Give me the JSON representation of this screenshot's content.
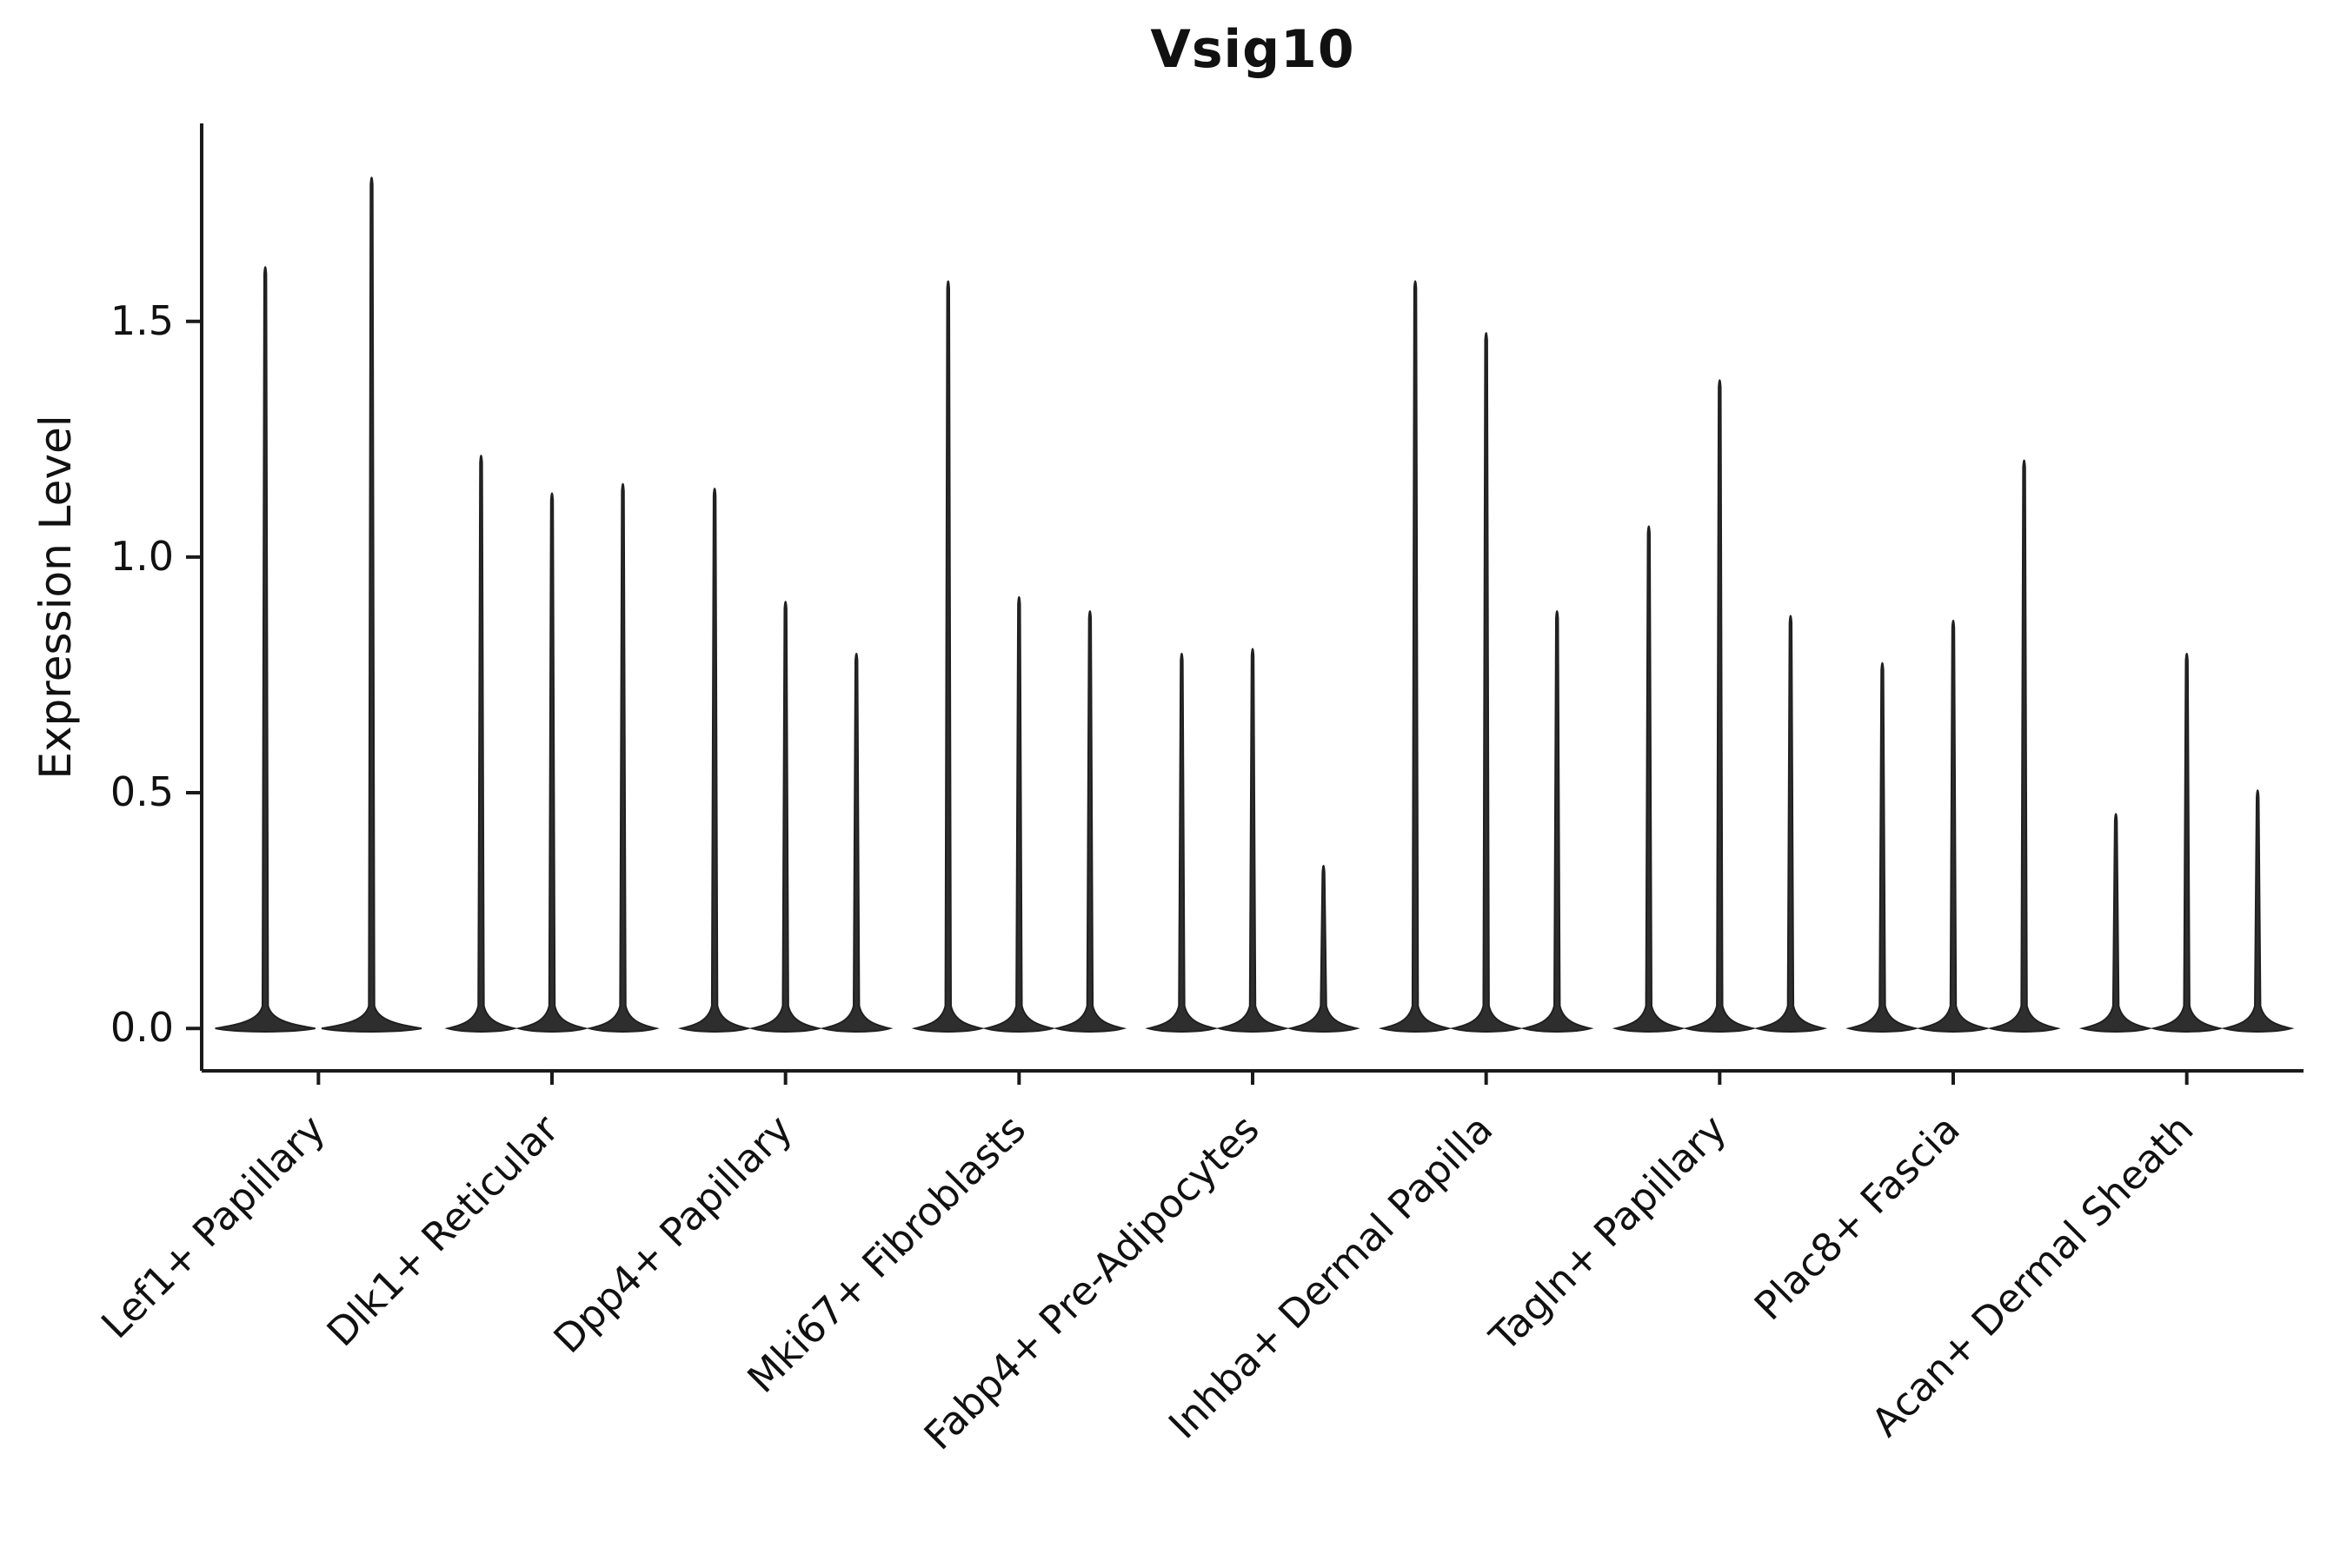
{
  "figure": {
    "kind": "violin-plot-figure"
  },
  "chart_data": {
    "type": "violin",
    "title": "Vsig10",
    "xlabel": "",
    "ylabel": "Expression Level",
    "ylim": [
      -0.09,
      1.92
    ],
    "yticks": [
      "0.0",
      "0.5",
      "1.0",
      "1.5"
    ],
    "grid": false,
    "legend": "none",
    "axis_color": "#1a1a1a",
    "violin_fill": "#2e2e2e",
    "violin_stroke": "#1f1f1f",
    "description": "Narrow violin spikes per cluster; bulk of cells at expression 0 forms a flat base, spike tip marks maximum expression level.",
    "categories": [
      "Lef1+ Papillary",
      "Dlk1+ Reticular",
      "Dpp4+ Papillary",
      "Mki67+ Fibroblasts",
      "Fabp4+ Pre-Adipocytes",
      "Inhba+ Dermal Papilla",
      "Tagln+ Papillary",
      "Plac8+ Fascia",
      "Acan+ Dermal Sheath"
    ],
    "groups": [
      {
        "category": "Lef1+ Papillary",
        "spike_heights": [
          1.63,
          1.82
        ]
      },
      {
        "category": "Dlk1+ Reticular",
        "spike_heights": [
          1.23,
          1.15,
          1.17
        ]
      },
      {
        "category": "Dpp4+ Papillary",
        "spike_heights": [
          1.16,
          0.92,
          0.81
        ]
      },
      {
        "category": "Mki67+ Fibroblasts",
        "spike_heights": [
          1.6,
          0.93,
          0.9
        ]
      },
      {
        "category": "Fabp4+ Pre-Adipocytes",
        "spike_heights": [
          0.81,
          0.82,
          0.36
        ]
      },
      {
        "category": "Inhba+ Dermal Papilla",
        "spike_heights": [
          1.6,
          1.49,
          0.9
        ]
      },
      {
        "category": "Tagln+ Papillary",
        "spike_heights": [
          1.08,
          1.39,
          0.89
        ]
      },
      {
        "category": "Plac8+ Fascia",
        "spike_heights": [
          0.79,
          0.88,
          1.22
        ]
      },
      {
        "category": "Acan+ Dermal Sheath",
        "spike_heights": [
          0.47,
          0.81,
          0.52
        ]
      }
    ]
  }
}
